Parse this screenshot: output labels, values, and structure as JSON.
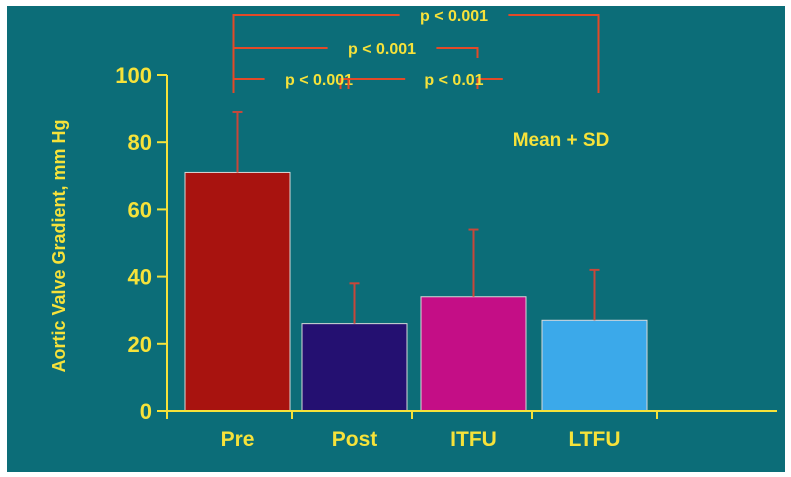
{
  "chart_data": {
    "type": "bar",
    "title": "",
    "ylabel": "Aortic Valve Gradient, mm Hg",
    "xlabel": "",
    "categories": [
      "Pre",
      "Post",
      "ITFU",
      "LTFU"
    ],
    "series": [
      {
        "values": [
          71,
          26,
          34,
          27
        ],
        "sd": [
          18,
          12,
          20,
          15
        ],
        "colors": [
          "#a8130f",
          "#241071",
          "#c40e86",
          "#3ba9ea"
        ]
      }
    ],
    "ylim": [
      0,
      100
    ],
    "yticks": [
      0,
      20,
      40,
      60,
      80,
      100
    ],
    "annotation": "Mean + SD",
    "comparisons": [
      {
        "from": "Pre",
        "to": "Post",
        "label": "p < 0.001"
      },
      {
        "from": "Post",
        "to": "ITFU",
        "label": "p < 0.01"
      },
      {
        "from": "Pre",
        "to": "ITFU",
        "label": "p < 0.001"
      },
      {
        "from": "Pre",
        "to": "LTFU",
        "label": "p < 0.001"
      }
    ],
    "grid": false,
    "legend": "none"
  },
  "colors": {
    "background": "#0c6d78",
    "text": "#f6e23a",
    "axis": "#f6e23a",
    "comparison_lines": "#e24a28",
    "error_bars": "#c8473a"
  }
}
